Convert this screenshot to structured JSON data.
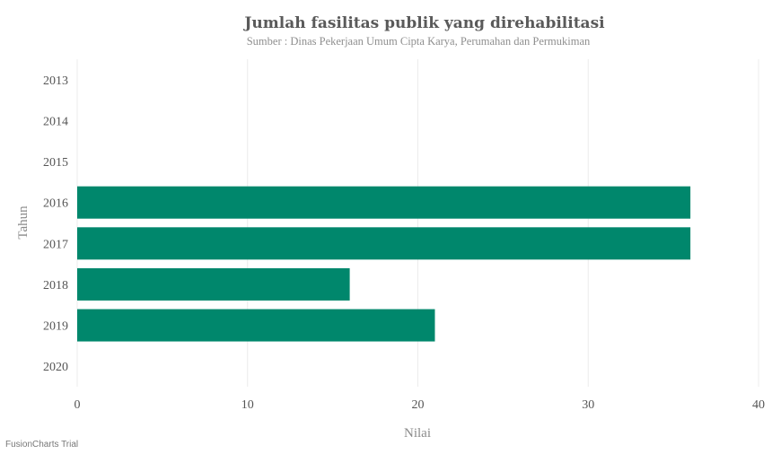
{
  "chart_data": {
    "type": "bar",
    "orientation": "horizontal",
    "title": "Jumlah fasilitas publik yang direhabilitasi",
    "subtitle": "Sumber : Dinas Pekerjaan Umum Cipta Karya, Perumahan dan Permukiman",
    "xlabel": "Nilai",
    "ylabel": "Tahun",
    "categories": [
      "2013",
      "2014",
      "2015",
      "2016",
      "2017",
      "2018",
      "2019",
      "2020"
    ],
    "values": [
      null,
      null,
      null,
      36,
      36,
      16,
      21,
      null
    ],
    "xlim": [
      0,
      40
    ],
    "xticks": [
      "0",
      "10",
      "20",
      "30",
      "40"
    ],
    "grid": true,
    "bar_color": "#00876c"
  },
  "footer": {
    "watermark": "FusionCharts Trial"
  }
}
